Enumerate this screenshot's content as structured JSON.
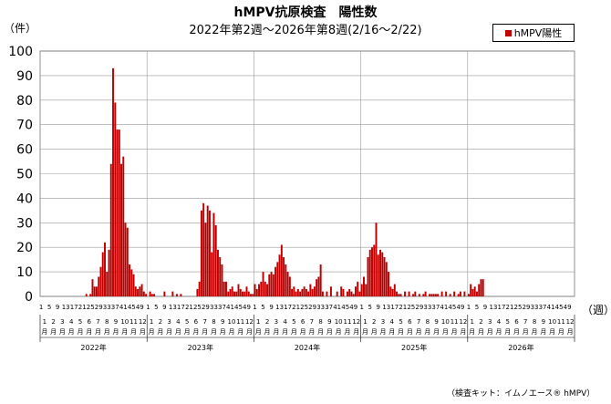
{
  "title": "hMPV抗原検査　陽性数",
  "subtitle": "2022年第2週〜2026年第8週(2/16〜2/22)",
  "y_unit": "（件）",
  "x_unit": "（週）",
  "legend_label": "hMPV陽性",
  "credit": "（検査キット：イムノエース® hMPV）",
  "colors": {
    "bar": "#c00000",
    "grid": "#999999"
  },
  "chart_data": {
    "type": "bar",
    "title": "hMPV抗原検査　陽性数",
    "ylim": [
      0,
      100
    ],
    "y_ticks": [
      0,
      10,
      20,
      30,
      40,
      50,
      60,
      70,
      80,
      90,
      100
    ],
    "grid": true,
    "legend_position": "top-right",
    "series": [
      {
        "name": "hMPV陽性",
        "color": "#c00000"
      }
    ],
    "week_ticks_per_year": [
      "1",
      "5",
      "9",
      "13",
      "17",
      "21",
      "25",
      "29",
      "33",
      "37",
      "41",
      "45",
      "49"
    ],
    "month_labels": [
      "1月",
      "2月",
      "3月",
      "4月",
      "5月",
      "6月",
      "7月",
      "8月",
      "9月",
      "10月",
      "11月",
      "12月"
    ],
    "years": [
      "2022年",
      "2023年",
      "2024年",
      "2025年",
      "2026年"
    ],
    "points": [
      {
        "year": "2022年",
        "week": 23,
        "value": 1
      },
      {
        "year": "2022年",
        "week": 25,
        "value": 1
      },
      {
        "year": "2022年",
        "week": 26,
        "value": 7
      },
      {
        "year": "2022年",
        "week": 27,
        "value": 4
      },
      {
        "year": "2022年",
        "week": 28,
        "value": 4
      },
      {
        "year": "2022年",
        "week": 29,
        "value": 8
      },
      {
        "year": "2022年",
        "week": 30,
        "value": 12
      },
      {
        "year": "2022年",
        "week": 31,
        "value": 18
      },
      {
        "year": "2022年",
        "week": 32,
        "value": 22
      },
      {
        "year": "2022年",
        "week": 33,
        "value": 10
      },
      {
        "year": "2022年",
        "week": 34,
        "value": 19
      },
      {
        "year": "2022年",
        "week": 35,
        "value": 54
      },
      {
        "year": "2022年",
        "week": 36,
        "value": 93
      },
      {
        "year": "2022年",
        "week": 37,
        "value": 79
      },
      {
        "year": "2022年",
        "week": 38,
        "value": 68
      },
      {
        "year": "2022年",
        "week": 39,
        "value": 68
      },
      {
        "year": "2022年",
        "week": 40,
        "value": 54
      },
      {
        "year": "2022年",
        "week": 41,
        "value": 57
      },
      {
        "year": "2022年",
        "week": 42,
        "value": 30
      },
      {
        "year": "2022年",
        "week": 43,
        "value": 28
      },
      {
        "year": "2022年",
        "week": 44,
        "value": 13
      },
      {
        "year": "2022年",
        "week": 45,
        "value": 11
      },
      {
        "year": "2022年",
        "week": 46,
        "value": 9
      },
      {
        "year": "2022年",
        "week": 47,
        "value": 4
      },
      {
        "year": "2022年",
        "week": 48,
        "value": 3
      },
      {
        "year": "2022年",
        "week": 49,
        "value": 4
      },
      {
        "year": "2022年",
        "week": 50,
        "value": 5
      },
      {
        "year": "2022年",
        "week": 51,
        "value": 2
      },
      {
        "year": "2022年",
        "week": 52,
        "value": 1
      },
      {
        "year": "2023年",
        "week": 2,
        "value": 2
      },
      {
        "year": "2023年",
        "week": 3,
        "value": 1
      },
      {
        "year": "2023年",
        "week": 4,
        "value": 1
      },
      {
        "year": "2023年",
        "week": 9,
        "value": 2
      },
      {
        "year": "2023年",
        "week": 13,
        "value": 2
      },
      {
        "year": "2023年",
        "week": 15,
        "value": 1
      },
      {
        "year": "2023年",
        "week": 17,
        "value": 1
      },
      {
        "year": "2023年",
        "week": 25,
        "value": 3
      },
      {
        "year": "2023年",
        "week": 26,
        "value": 6
      },
      {
        "year": "2023年",
        "week": 27,
        "value": 35
      },
      {
        "year": "2023年",
        "week": 28,
        "value": 38
      },
      {
        "year": "2023年",
        "week": 29,
        "value": 30
      },
      {
        "year": "2023年",
        "week": 30,
        "value": 37
      },
      {
        "year": "2023年",
        "week": 31,
        "value": 35
      },
      {
        "year": "2023年",
        "week": 32,
        "value": 18
      },
      {
        "year": "2023年",
        "week": 33,
        "value": 34
      },
      {
        "year": "2023年",
        "week": 34,
        "value": 29
      },
      {
        "year": "2023年",
        "week": 35,
        "value": 19
      },
      {
        "year": "2023年",
        "week": 36,
        "value": 16
      },
      {
        "year": "2023年",
        "week": 37,
        "value": 13
      },
      {
        "year": "2023年",
        "week": 38,
        "value": 6
      },
      {
        "year": "2023年",
        "week": 39,
        "value": 6
      },
      {
        "year": "2023年",
        "week": 40,
        "value": 2
      },
      {
        "year": "2023年",
        "week": 41,
        "value": 3
      },
      {
        "year": "2023年",
        "week": 42,
        "value": 4
      },
      {
        "year": "2023年",
        "week": 43,
        "value": 2
      },
      {
        "year": "2023年",
        "week": 44,
        "value": 2
      },
      {
        "year": "2023年",
        "week": 45,
        "value": 5
      },
      {
        "year": "2023年",
        "week": 46,
        "value": 3
      },
      {
        "year": "2023年",
        "week": 47,
        "value": 2
      },
      {
        "year": "2023年",
        "week": 48,
        "value": 2
      },
      {
        "year": "2023年",
        "week": 49,
        "value": 4
      },
      {
        "year": "2023年",
        "week": 50,
        "value": 2
      },
      {
        "year": "2023年",
        "week": 51,
        "value": 1
      },
      {
        "year": "2023年",
        "week": 52,
        "value": 1
      },
      {
        "year": "2024年",
        "week": 1,
        "value": 5
      },
      {
        "year": "2024年",
        "week": 2,
        "value": 3
      },
      {
        "year": "2024年",
        "week": 3,
        "value": 5
      },
      {
        "year": "2024年",
        "week": 4,
        "value": 6
      },
      {
        "year": "2024年",
        "week": 5,
        "value": 10
      },
      {
        "year": "2024年",
        "week": 6,
        "value": 6
      },
      {
        "year": "2024年",
        "week": 7,
        "value": 5
      },
      {
        "year": "2024年",
        "week": 8,
        "value": 9
      },
      {
        "year": "2024年",
        "week": 9,
        "value": 10
      },
      {
        "year": "2024年",
        "week": 10,
        "value": 9
      },
      {
        "year": "2024年",
        "week": 11,
        "value": 12
      },
      {
        "year": "2024年",
        "week": 12,
        "value": 14
      },
      {
        "year": "2024年",
        "week": 13,
        "value": 17
      },
      {
        "year": "2024年",
        "week": 14,
        "value": 21
      },
      {
        "year": "2024年",
        "week": 15,
        "value": 16
      },
      {
        "year": "2024年",
        "week": 16,
        "value": 13
      },
      {
        "year": "2024年",
        "week": 17,
        "value": 10
      },
      {
        "year": "2024年",
        "week": 18,
        "value": 8
      },
      {
        "year": "2024年",
        "week": 19,
        "value": 3
      },
      {
        "year": "2024年",
        "week": 20,
        "value": 4
      },
      {
        "year": "2024年",
        "week": 21,
        "value": 2
      },
      {
        "year": "2024年",
        "week": 22,
        "value": 3
      },
      {
        "year": "2024年",
        "week": 23,
        "value": 2
      },
      {
        "year": "2024年",
        "week": 24,
        "value": 3
      },
      {
        "year": "2024年",
        "week": 25,
        "value": 4
      },
      {
        "year": "2024年",
        "week": 26,
        "value": 3
      },
      {
        "year": "2024年",
        "week": 27,
        "value": 2
      },
      {
        "year": "2024年",
        "week": 28,
        "value": 5
      },
      {
        "year": "2024年",
        "week": 29,
        "value": 3
      },
      {
        "year": "2024年",
        "week": 30,
        "value": 4
      },
      {
        "year": "2024年",
        "week": 31,
        "value": 7
      },
      {
        "year": "2024年",
        "week": 32,
        "value": 8
      },
      {
        "year": "2024年",
        "week": 33,
        "value": 13
      },
      {
        "year": "2024年",
        "week": 34,
        "value": 2
      },
      {
        "year": "2024年",
        "week": 36,
        "value": 2
      },
      {
        "year": "2024年",
        "week": 38,
        "value": 4
      },
      {
        "year": "2024年",
        "week": 41,
        "value": 2
      },
      {
        "year": "2024年",
        "week": 43,
        "value": 4
      },
      {
        "year": "2024年",
        "week": 44,
        "value": 3
      },
      {
        "year": "2024年",
        "week": 46,
        "value": 2
      },
      {
        "year": "2024年",
        "week": 47,
        "value": 3
      },
      {
        "year": "2024年",
        "week": 48,
        "value": 2
      },
      {
        "year": "2024年",
        "week": 49,
        "value": 1
      },
      {
        "year": "2024年",
        "week": 50,
        "value": 4
      },
      {
        "year": "2024年",
        "week": 51,
        "value": 6
      },
      {
        "year": "2024年",
        "week": 52,
        "value": 2
      },
      {
        "year": "2025年",
        "week": 1,
        "value": 5
      },
      {
        "year": "2025年",
        "week": 2,
        "value": 8
      },
      {
        "year": "2025年",
        "week": 3,
        "value": 5
      },
      {
        "year": "2025年",
        "week": 4,
        "value": 16
      },
      {
        "year": "2025年",
        "week": 5,
        "value": 19
      },
      {
        "year": "2025年",
        "week": 6,
        "value": 20
      },
      {
        "year": "2025年",
        "week": 7,
        "value": 21
      },
      {
        "year": "2025年",
        "week": 8,
        "value": 30
      },
      {
        "year": "2025年",
        "week": 9,
        "value": 17
      },
      {
        "year": "2025年",
        "week": 10,
        "value": 19
      },
      {
        "year": "2025年",
        "week": 11,
        "value": 18
      },
      {
        "year": "2025年",
        "week": 12,
        "value": 16
      },
      {
        "year": "2025年",
        "week": 13,
        "value": 14
      },
      {
        "year": "2025年",
        "week": 14,
        "value": 10
      },
      {
        "year": "2025年",
        "week": 15,
        "value": 4
      },
      {
        "year": "2025年",
        "week": 16,
        "value": 3
      },
      {
        "year": "2025年",
        "week": 17,
        "value": 5
      },
      {
        "year": "2025年",
        "week": 18,
        "value": 2
      },
      {
        "year": "2025年",
        "week": 19,
        "value": 1
      },
      {
        "year": "2025年",
        "week": 20,
        "value": 1
      },
      {
        "year": "2025年",
        "week": 22,
        "value": 2
      },
      {
        "year": "2025年",
        "week": 24,
        "value": 2
      },
      {
        "year": "2025年",
        "week": 26,
        "value": 1
      },
      {
        "year": "2025年",
        "week": 27,
        "value": 2
      },
      {
        "year": "2025年",
        "week": 29,
        "value": 1
      },
      {
        "year": "2025年",
        "week": 31,
        "value": 1
      },
      {
        "year": "2025年",
        "week": 32,
        "value": 2
      },
      {
        "year": "2025年",
        "week": 34,
        "value": 1
      },
      {
        "year": "2025年",
        "week": 35,
        "value": 1
      },
      {
        "year": "2025年",
        "week": 36,
        "value": 1
      },
      {
        "year": "2025年",
        "week": 37,
        "value": 1
      },
      {
        "year": "2025年",
        "week": 38,
        "value": 1
      },
      {
        "year": "2025年",
        "week": 40,
        "value": 2
      },
      {
        "year": "2025年",
        "week": 42,
        "value": 2
      },
      {
        "year": "2025年",
        "week": 44,
        "value": 1
      },
      {
        "year": "2025年",
        "week": 46,
        "value": 2
      },
      {
        "year": "2025年",
        "week": 48,
        "value": 1
      },
      {
        "year": "2025年",
        "week": 49,
        "value": 2
      },
      {
        "year": "2025年",
        "week": 51,
        "value": 2
      },
      {
        "year": "2026年",
        "week": 1,
        "value": 1
      },
      {
        "year": "2026年",
        "week": 2,
        "value": 5
      },
      {
        "year": "2026年",
        "week": 3,
        "value": 3
      },
      {
        "year": "2026年",
        "week": 4,
        "value": 4
      },
      {
        "year": "2026年",
        "week": 5,
        "value": 2
      },
      {
        "year": "2026年",
        "week": 6,
        "value": 5
      },
      {
        "year": "2026年",
        "week": 7,
        "value": 7
      },
      {
        "year": "2026年",
        "week": 8,
        "value": 7
      }
    ]
  }
}
